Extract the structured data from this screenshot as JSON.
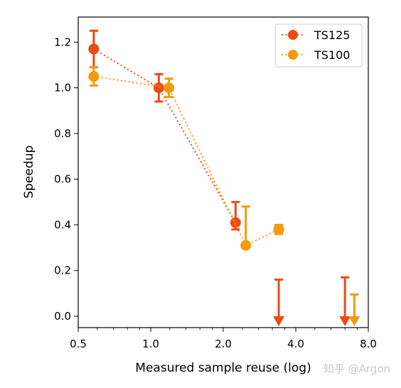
{
  "chart_data": {
    "type": "scatter",
    "title": "",
    "xlabel": "Measured sample reuse (log)",
    "ylabel": "Speedup",
    "xscale": "log2",
    "xlim": [
      0.5,
      8.0
    ],
    "ylim": [
      -0.05,
      1.31
    ],
    "x_ticks": [
      {
        "value": 0.5,
        "label": "0.5"
      },
      {
        "value": 1.0,
        "label": "1.0"
      },
      {
        "value": 2.0,
        "label": "2.0"
      },
      {
        "value": 4.0,
        "label": "4.0"
      },
      {
        "value": 8.0,
        "label": "8.0"
      }
    ],
    "y_ticks": [
      {
        "value": 0.0,
        "label": "0.0"
      },
      {
        "value": 0.2,
        "label": "0.2"
      },
      {
        "value": 0.4,
        "label": "0.4"
      },
      {
        "value": 0.6,
        "label": "0.6"
      },
      {
        "value": 0.8,
        "label": "0.8"
      },
      {
        "value": 1.0,
        "label": "1.0"
      },
      {
        "value": 1.2,
        "label": "1.2"
      }
    ],
    "legend_position": "top-right",
    "grid": false,
    "series": [
      {
        "name": "TS125",
        "color": "#ee4a16",
        "points": [
          {
            "x": 0.58,
            "y": 1.17,
            "y_low": 1.09,
            "y_high": 1.25
          },
          {
            "x": 1.08,
            "y": 1.0,
            "y_low": 0.94,
            "y_high": 1.06
          },
          {
            "x": 2.25,
            "y": 0.41,
            "y_low": 0.38,
            "y_high": 0.5
          }
        ],
        "upper_limits": [
          {
            "x": 3.4,
            "y_high": 0.16
          },
          {
            "x": 6.4,
            "y_high": 0.17
          }
        ]
      },
      {
        "name": "TS100",
        "color": "#f59a0b",
        "points": [
          {
            "x": 0.58,
            "y": 1.05,
            "y_low": 1.01,
            "y_high": 1.09
          },
          {
            "x": 1.19,
            "y": 1.0,
            "y_low": 0.96,
            "y_high": 1.04
          },
          {
            "x": 2.48,
            "y": 0.31,
            "y_low": 0.31,
            "y_high": 0.48
          },
          {
            "x": 3.4,
            "y": 0.38,
            "y_low": 0.36,
            "y_high": 0.4
          }
        ],
        "upper_limits": [
          {
            "x": 7.0,
            "y_high": 0.095
          }
        ]
      }
    ]
  },
  "watermark": "知乎 @Argon"
}
